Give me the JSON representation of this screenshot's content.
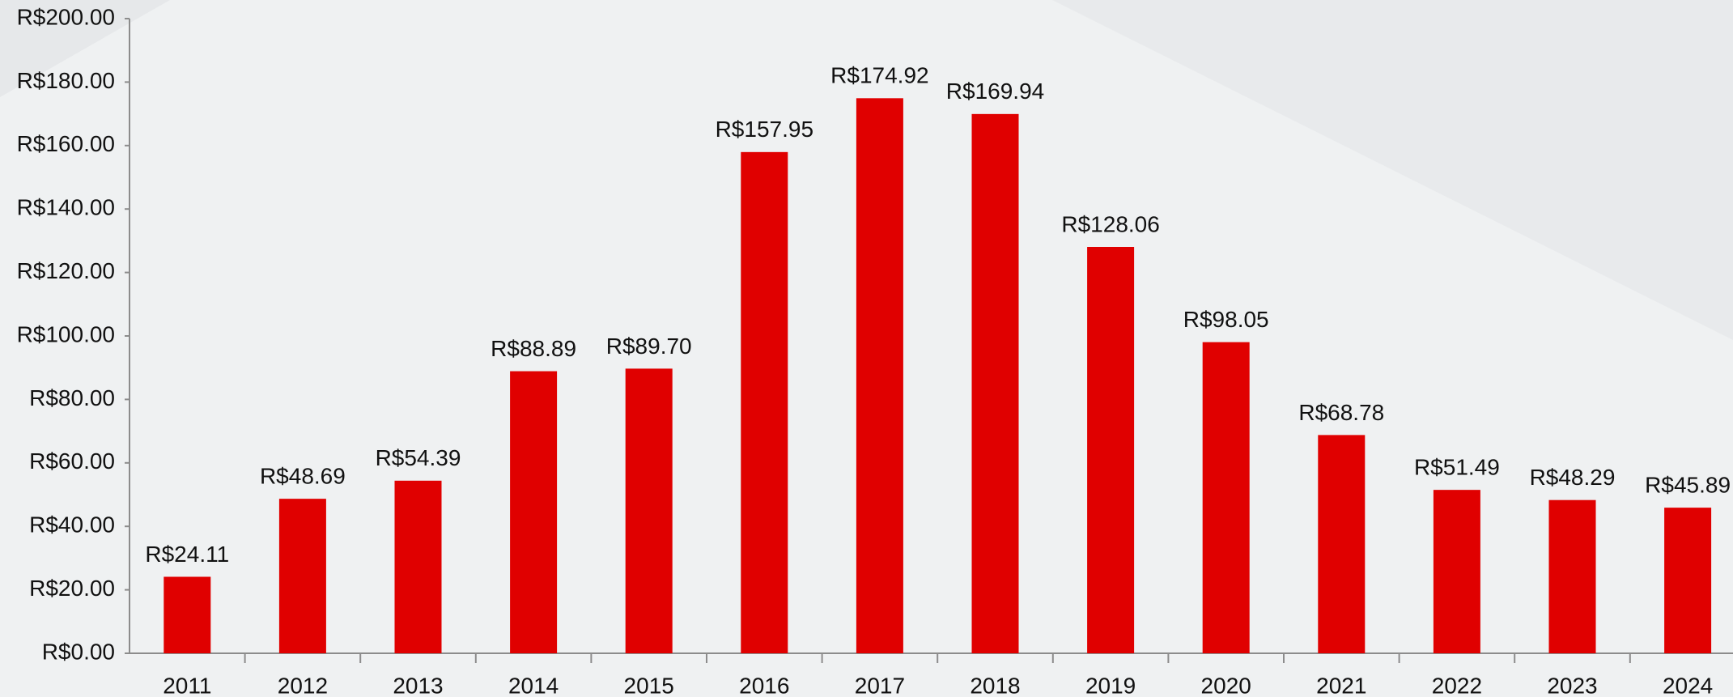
{
  "chart_data": {
    "type": "bar",
    "categories": [
      "2011",
      "2012",
      "2013",
      "2014",
      "2015",
      "2016",
      "2017",
      "2018",
      "2019",
      "2020",
      "2021",
      "2022",
      "2023",
      "2024"
    ],
    "values": [
      24.11,
      48.69,
      54.39,
      88.89,
      89.7,
      157.95,
      174.92,
      169.94,
      128.06,
      98.05,
      68.78,
      51.49,
      48.29,
      45.89
    ],
    "value_labels": [
      "R$24.11",
      "R$48.69",
      "R$54.39",
      "R$88.89",
      "R$89.70",
      "R$157.95",
      "R$174.92",
      "R$169.94",
      "R$128.06",
      "R$98.05",
      "R$68.78",
      "R$51.49",
      "R$48.29",
      "R$45.89"
    ],
    "color": "#e00000",
    "ylim": [
      0,
      200
    ],
    "yticks": [
      {
        "value": 0,
        "label": "R$0.00"
      },
      {
        "value": 20,
        "label": "R$20.00"
      },
      {
        "value": 40,
        "label": "R$40.00"
      },
      {
        "value": 60,
        "label": "R$60.00"
      },
      {
        "value": 80,
        "label": "R$80.00"
      },
      {
        "value": 100,
        "label": "R$100.00"
      },
      {
        "value": 120,
        "label": "R$120.00"
      },
      {
        "value": 140,
        "label": "R$140.00"
      },
      {
        "value": 160,
        "label": "R$160.00"
      },
      {
        "value": 180,
        "label": "R$180.00"
      },
      {
        "value": 200,
        "label": "R$200.00"
      }
    ],
    "grid": false
  }
}
